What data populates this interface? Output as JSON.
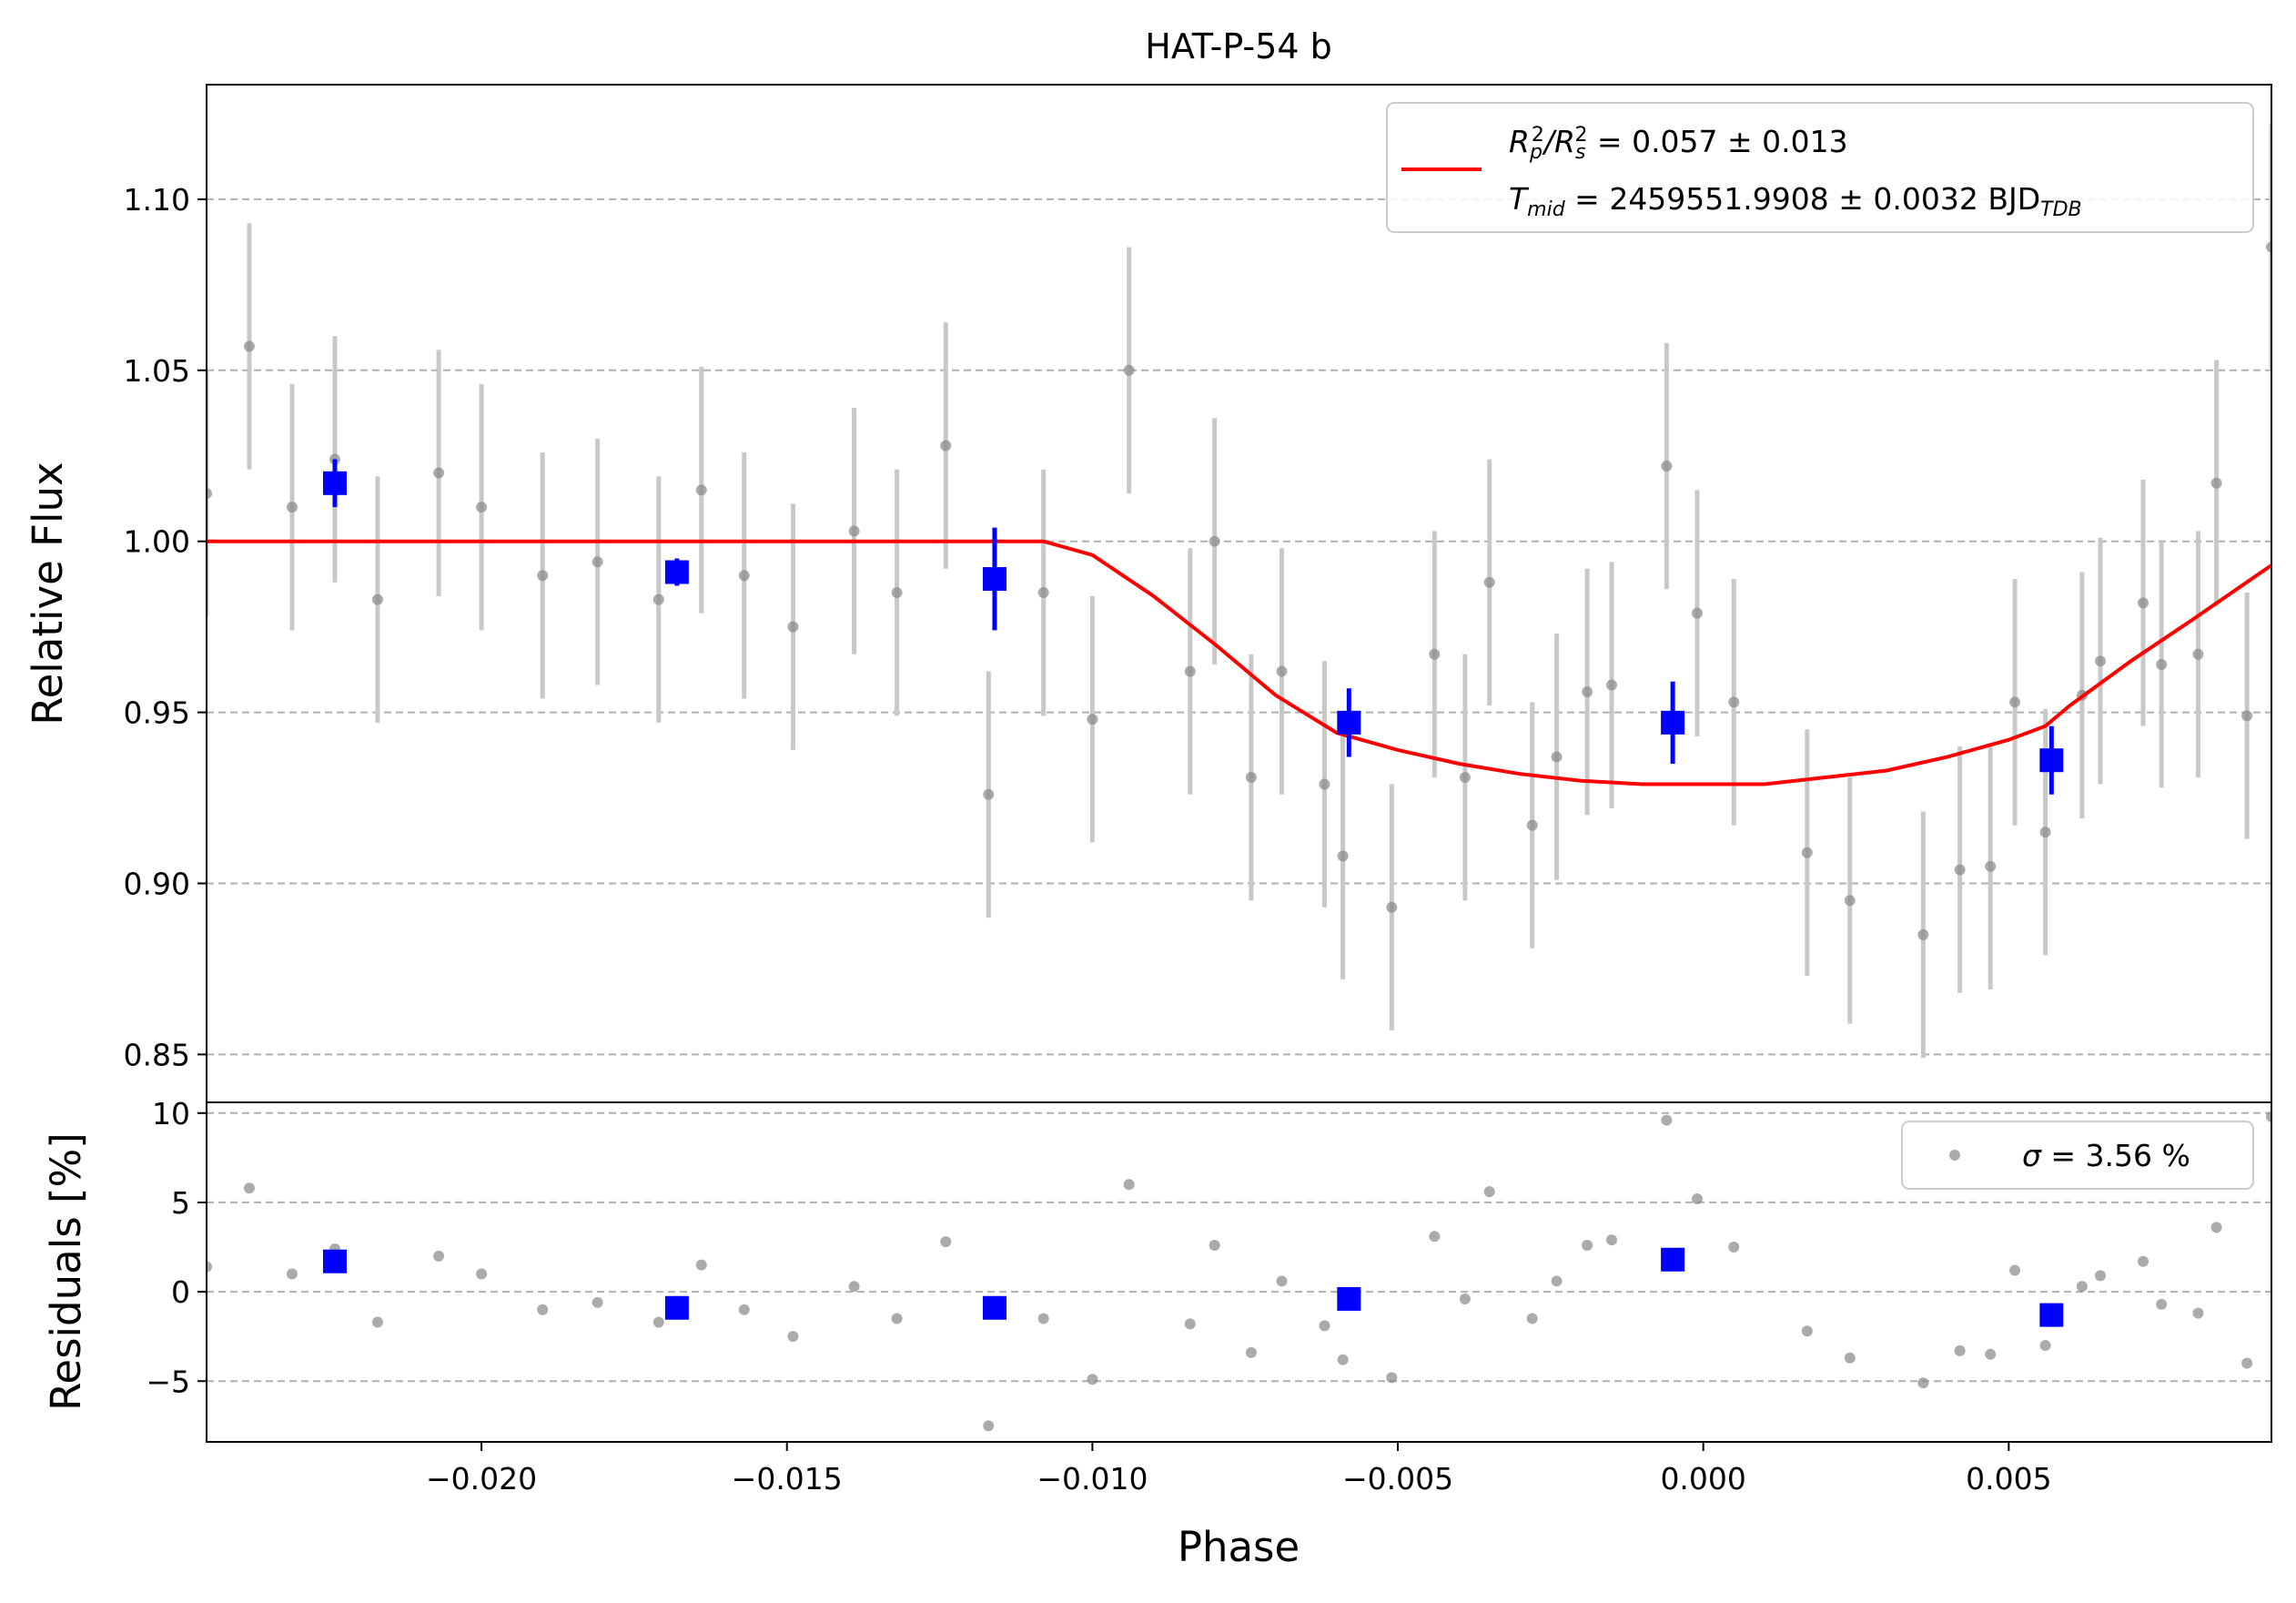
{
  "chart_data": [
    {
      "type": "scatter",
      "panel": "main",
      "title": "HAT-P-54 b",
      "xlabel": "Phase",
      "ylabel": "Relative Flux",
      "xlim": [
        -0.0245,
        0.0093
      ],
      "ylim": [
        0.836,
        1.1335
      ],
      "grid": "horizontal dashed",
      "legend_position": "top-right",
      "legend": {
        "line1": {
          "lhs": "R",
          "sub1": "p",
          "sup1": "2",
          "slash": "/R",
          "sub2": "s",
          "sup2": "2",
          "rhs": " = 0.057 ± 0.013"
        },
        "line2": {
          "lhs": "T",
          "sub": "mid",
          "rhs": " = 2459551.9908 ± 0.0032 BJD",
          "sub2": "TDB"
        }
      },
      "xticks": [
        -0.02,
        -0.015,
        -0.01,
        -0.005,
        0.0,
        0.005
      ],
      "xtick_labels": [
        "−0.020",
        "−0.015",
        "−0.010",
        "−0.005",
        "0.000",
        "0.005"
      ],
      "yticks": [
        0.85,
        0.9,
        0.95,
        1.0,
        1.05,
        1.1
      ],
      "ytick_labels": [
        "0.85",
        "0.90",
        "0.95",
        "1.00",
        "1.05",
        "1.10"
      ],
      "colors": {
        "data": "#888888",
        "errorbar": "#c8c8c8",
        "binned": "#0000ff",
        "model": "#ff0000",
        "grid": "#b0b0b0"
      },
      "series": [
        {
          "kind": "points_with_errors",
          "x": [
            -0.0245,
            -0.0238,
            -0.0231,
            -0.0224,
            -0.0217,
            -0.0207,
            -0.02,
            -0.019,
            -0.0181,
            -0.0171,
            -0.0164,
            -0.0157,
            -0.0149,
            -0.0139,
            -0.0132,
            -0.0124,
            -0.0117,
            -0.0108,
            -0.01,
            -0.0094,
            -0.0084,
            -0.008,
            -0.0074,
            -0.0069,
            -0.0062,
            -0.0059,
            -0.0051,
            -0.0044,
            -0.0039,
            -0.0035,
            -0.0028,
            -0.0024,
            -0.0019,
            -0.0015,
            -0.0006,
            -0.0001,
            0.0005,
            0.0017,
            0.0024,
            0.0036,
            0.0042,
            0.0047,
            0.0051,
            0.0056,
            0.0062,
            0.0065,
            0.0072,
            0.0075,
            0.0081,
            0.0084,
            0.0089,
            0.0093
          ],
          "y": [
            1.014,
            1.057,
            1.01,
            1.024,
            0.983,
            1.02,
            1.01,
            0.99,
            0.994,
            0.983,
            1.015,
            0.99,
            0.975,
            1.003,
            0.985,
            1.028,
            0.926,
            0.985,
            0.948,
            1.05,
            0.962,
            1.0,
            0.931,
            0.962,
            0.929,
            0.908,
            0.893,
            0.967,
            0.931,
            0.988,
            0.917,
            0.937,
            0.956,
            0.958,
            1.022,
            0.979,
            0.953,
            0.909,
            0.895,
            0.885,
            0.904,
            0.905,
            0.953,
            0.915,
            0.955,
            0.965,
            0.982,
            0.964,
            0.967,
            1.017,
            0.949,
            1.086
          ],
          "yerr": 0.036
        },
        {
          "kind": "binned",
          "x": [
            -0.0224,
            -0.0168,
            -0.0116,
            -0.0058,
            -0.0005,
            0.0057
          ],
          "y": [
            1.017,
            0.991,
            0.989,
            0.947,
            0.947,
            0.936
          ],
          "yerr": [
            0.007,
            0.004,
            0.015,
            0.01,
            0.012,
            0.01
          ]
        },
        {
          "kind": "model_line",
          "name": "transit model",
          "x": [
            -0.0245,
            -0.0108,
            -0.01,
            -0.009,
            -0.008,
            -0.007,
            -0.006,
            -0.005,
            -0.004,
            -0.003,
            -0.002,
            -0.001,
            0.0,
            0.001,
            0.002,
            0.003,
            0.004,
            0.005,
            0.0056,
            0.006,
            0.007,
            0.008,
            0.0093
          ],
          "y": [
            1.0,
            1.0,
            0.996,
            0.984,
            0.97,
            0.955,
            0.944,
            0.939,
            0.935,
            0.932,
            0.93,
            0.929,
            0.929,
            0.929,
            0.931,
            0.933,
            0.937,
            0.942,
            0.946,
            0.952,
            0.965,
            0.977,
            0.993
          ]
        }
      ]
    },
    {
      "type": "scatter",
      "panel": "residuals",
      "xlabel": "Phase",
      "ylabel": "Residuals [%]",
      "xlim": [
        -0.0245,
        0.0093
      ],
      "ylim": [
        -8.4,
        10.6
      ],
      "grid": "horizontal dashed",
      "legend_position": "top-right",
      "legend": {
        "symbol": "σ",
        "text": " = 3.56 %"
      },
      "yticks": [
        -5,
        0,
        5,
        10
      ],
      "ytick_labels": [
        "−5",
        "0",
        "5",
        "10"
      ],
      "series": [
        {
          "kind": "points",
          "x": [
            -0.0245,
            -0.0238,
            -0.0231,
            -0.0224,
            -0.0217,
            -0.0207,
            -0.02,
            -0.019,
            -0.0181,
            -0.0171,
            -0.0164,
            -0.0157,
            -0.0149,
            -0.0139,
            -0.0132,
            -0.0124,
            -0.0117,
            -0.0108,
            -0.01,
            -0.0094,
            -0.0084,
            -0.008,
            -0.0074,
            -0.0069,
            -0.0062,
            -0.0059,
            -0.0051,
            -0.0044,
            -0.0039,
            -0.0035,
            -0.0028,
            -0.0024,
            -0.0019,
            -0.0015,
            -0.0006,
            -0.0001,
            0.0005,
            0.0017,
            0.0024,
            0.0036,
            0.0042,
            0.0047,
            0.0051,
            0.0056,
            0.0062,
            0.0065,
            0.0072,
            0.0075,
            0.0081,
            0.0084,
            0.0089,
            0.0093
          ],
          "y": [
            1.4,
            5.8,
            1.0,
            2.4,
            -1.7,
            2.0,
            1.0,
            -1.0,
            -0.6,
            -1.7,
            1.5,
            -1.0,
            -2.5,
            0.3,
            -1.5,
            2.8,
            -7.5,
            -1.5,
            -4.9,
            6.0,
            -1.8,
            2.6,
            -3.4,
            0.6,
            -1.9,
            -3.8,
            -4.8,
            3.1,
            -0.4,
            5.6,
            -1.5,
            0.6,
            2.6,
            2.9,
            9.6,
            5.2,
            2.5,
            -2.2,
            -3.7,
            -5.1,
            -3.3,
            -3.5,
            1.2,
            -3.0,
            0.3,
            0.9,
            1.7,
            -0.7,
            -1.2,
            3.6,
            -4.0,
            9.8
          ]
        },
        {
          "kind": "binned",
          "x": [
            -0.0224,
            -0.0168,
            -0.0116,
            -0.0058,
            -0.0005,
            0.0057
          ],
          "y": [
            1.7,
            -0.9,
            -0.9,
            -0.4,
            1.8,
            -1.3
          ]
        }
      ]
    }
  ]
}
